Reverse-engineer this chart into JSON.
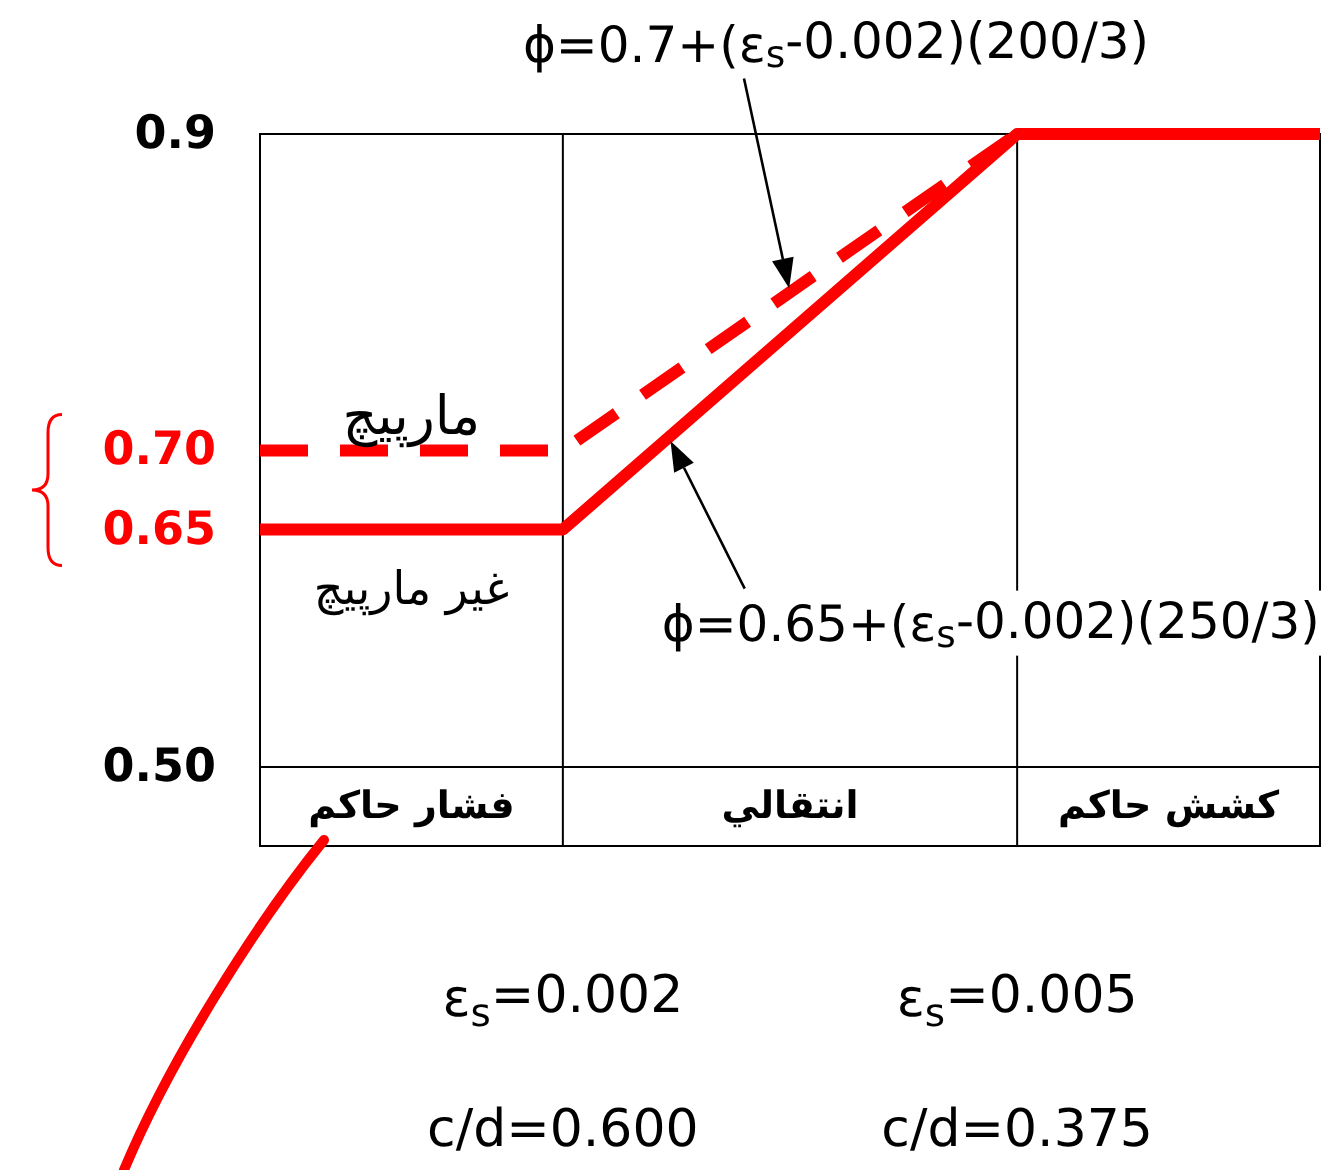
{
  "chart_data": {
    "type": "line",
    "xlim": [
      0,
      0.007
    ],
    "ylim": [
      0.45,
      0.9
    ],
    "xticks": [
      {
        "value": 0.002,
        "label": "ε$_{s}$=0.002"
      },
      {
        "value": 0.005,
        "label": "ε$_{s}$=0.005"
      }
    ],
    "yticks": [
      {
        "value": 0.5,
        "label": "0.50"
      },
      0.65,
      {
        "value": 0.7,
        "label": "0.70"
      },
      0.9
    ],
    "grid": "x",
    "series": [
      {
        "name": "مارپیچ",
        "color": "#ff0000",
        "line_style": "dashed",
        "x": [
          0,
          0.002,
          0.005
        ],
        "values": [
          0.7,
          0.7,
          0.9
        ]
      },
      {
        "name": "غیر مارپیچ",
        "color": "#ff0000",
        "line_style": "solid",
        "x": [
          0,
          0.002,
          0.005,
          0.007
        ],
        "values": [
          0.65,
          0.65,
          0.9,
          0.9
        ]
      }
    ],
    "ref_lines": [
      {
        "axis": "y",
        "value": 0.5
      }
    ],
    "annotations": [
      "ϕ=0.7+(ε$_{s}$-0.002)(200/3)",
      "ϕ=0.65+(ε$_{s}$-0.002)(250/3)",
      "فشار حاکم",
      "انتقالي",
      "کشش حاکم",
      "c/d=0.600",
      "c/d=0.375"
    ]
  }
}
